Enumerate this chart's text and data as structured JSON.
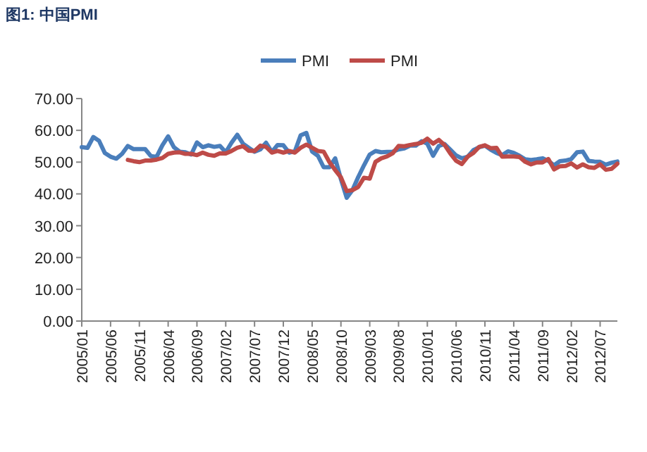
{
  "chart_data": {
    "type": "line",
    "title": "图1: 中国PMI",
    "categories": [
      "2005/01",
      null,
      null,
      null,
      null,
      "2005/06",
      null,
      null,
      null,
      null,
      "2005/11",
      null,
      null,
      null,
      null,
      "2006/04",
      null,
      null,
      null,
      null,
      "2006/09",
      null,
      null,
      null,
      null,
      "2007/02",
      null,
      null,
      null,
      null,
      "2007/07",
      null,
      null,
      null,
      null,
      "2007/12",
      null,
      null,
      null,
      null,
      "2008/05",
      null,
      null,
      null,
      null,
      "2008/10",
      null,
      null,
      null,
      null,
      "2009/03",
      null,
      null,
      null,
      null,
      "2009/08",
      null,
      null,
      null,
      null,
      "2010/01",
      null,
      null,
      null,
      null,
      "2010/06",
      null,
      null,
      null,
      null,
      "2010/11",
      null,
      null,
      null,
      null,
      "2011/04",
      null,
      null,
      null,
      null,
      "2011/09",
      null,
      null,
      null,
      null,
      "2012/02",
      null,
      null,
      null,
      null,
      "2012/07",
      null,
      null,
      null
    ],
    "series": [
      {
        "name": "PMI",
        "color": "#4a7ebb",
        "values": [
          54.7,
          54.5,
          57.9,
          56.7,
          52.9,
          51.7,
          51.1,
          52.6,
          55.1,
          54.1,
          54.1,
          54.1,
          51.9,
          51.7,
          55.3,
          58.1,
          54.7,
          53.3,
          53.1,
          52.4,
          56.2,
          54.7,
          55.3,
          54.8,
          55.1,
          53.1,
          56.1,
          58.6,
          55.8,
          54.5,
          53.3,
          54.0,
          56.1,
          53.2,
          55.4,
          55.3,
          53.0,
          53.4,
          58.4,
          59.2,
          53.3,
          52.0,
          48.4,
          48.4,
          51.2,
          44.6,
          38.8,
          41.2,
          45.3,
          49.0,
          52.4,
          53.5,
          53.1,
          53.2,
          53.3,
          54.0,
          54.3,
          55.2,
          55.2,
          56.6,
          55.8,
          52.0,
          55.1,
          55.7,
          53.9,
          52.1,
          51.2,
          51.7,
          53.8,
          54.7,
          55.2,
          53.9,
          52.9,
          52.2,
          53.4,
          52.9,
          52.0,
          50.9,
          50.7,
          50.9,
          51.2,
          50.4,
          49.0,
          50.3,
          50.5,
          51.0,
          53.1,
          53.3,
          50.4,
          50.2,
          50.1,
          49.2,
          49.8,
          50.2
        ]
      },
      {
        "name": "PMI",
        "color": "#be4b48",
        "values": [
          null,
          null,
          null,
          null,
          null,
          null,
          null,
          null,
          50.7,
          50.3,
          50.0,
          50.5,
          50.5,
          50.8,
          51.3,
          52.6,
          53.0,
          53.1,
          52.6,
          52.6,
          52.2,
          53.0,
          52.3,
          52.0,
          52.8,
          52.7,
          53.5,
          54.5,
          55.0,
          53.6,
          53.5,
          55.2,
          54.8,
          53.0,
          53.5,
          53.0,
          53.5,
          53.0,
          54.5,
          55.5,
          54.5,
          53.5,
          53.3,
          50.0,
          47.5,
          45.2,
          40.9,
          41.2,
          42.2,
          45.1,
          44.8,
          50.1,
          51.2,
          51.8,
          52.8,
          55.1,
          55.0,
          55.4,
          55.7,
          56.1,
          57.4,
          55.8,
          57.0,
          55.4,
          52.7,
          50.4,
          49.4,
          51.7,
          52.9,
          54.8,
          55.3,
          54.4,
          54.5,
          51.7,
          51.8,
          51.8,
          51.6,
          50.1,
          49.3,
          49.9,
          49.9,
          51.0,
          47.7,
          48.7,
          48.8,
          49.6,
          48.3,
          49.3,
          48.4,
          48.2,
          49.3,
          47.6,
          47.9,
          49.5
        ]
      }
    ],
    "ylim": [
      0,
      70
    ],
    "yticks": [
      {
        "value": 0,
        "label": "0.00"
      },
      {
        "value": 10,
        "label": "10.00"
      },
      {
        "value": 20,
        "label": "20.00"
      },
      {
        "value": 30,
        "label": "30.00"
      },
      {
        "value": 40,
        "label": "40.00"
      },
      {
        "value": 50,
        "label": "50.00"
      },
      {
        "value": 60,
        "label": "60.00"
      },
      {
        "value": 70,
        "label": "70.00"
      }
    ],
    "grid": false,
    "legend": "top",
    "marker": "none",
    "line_style": "solid"
  }
}
